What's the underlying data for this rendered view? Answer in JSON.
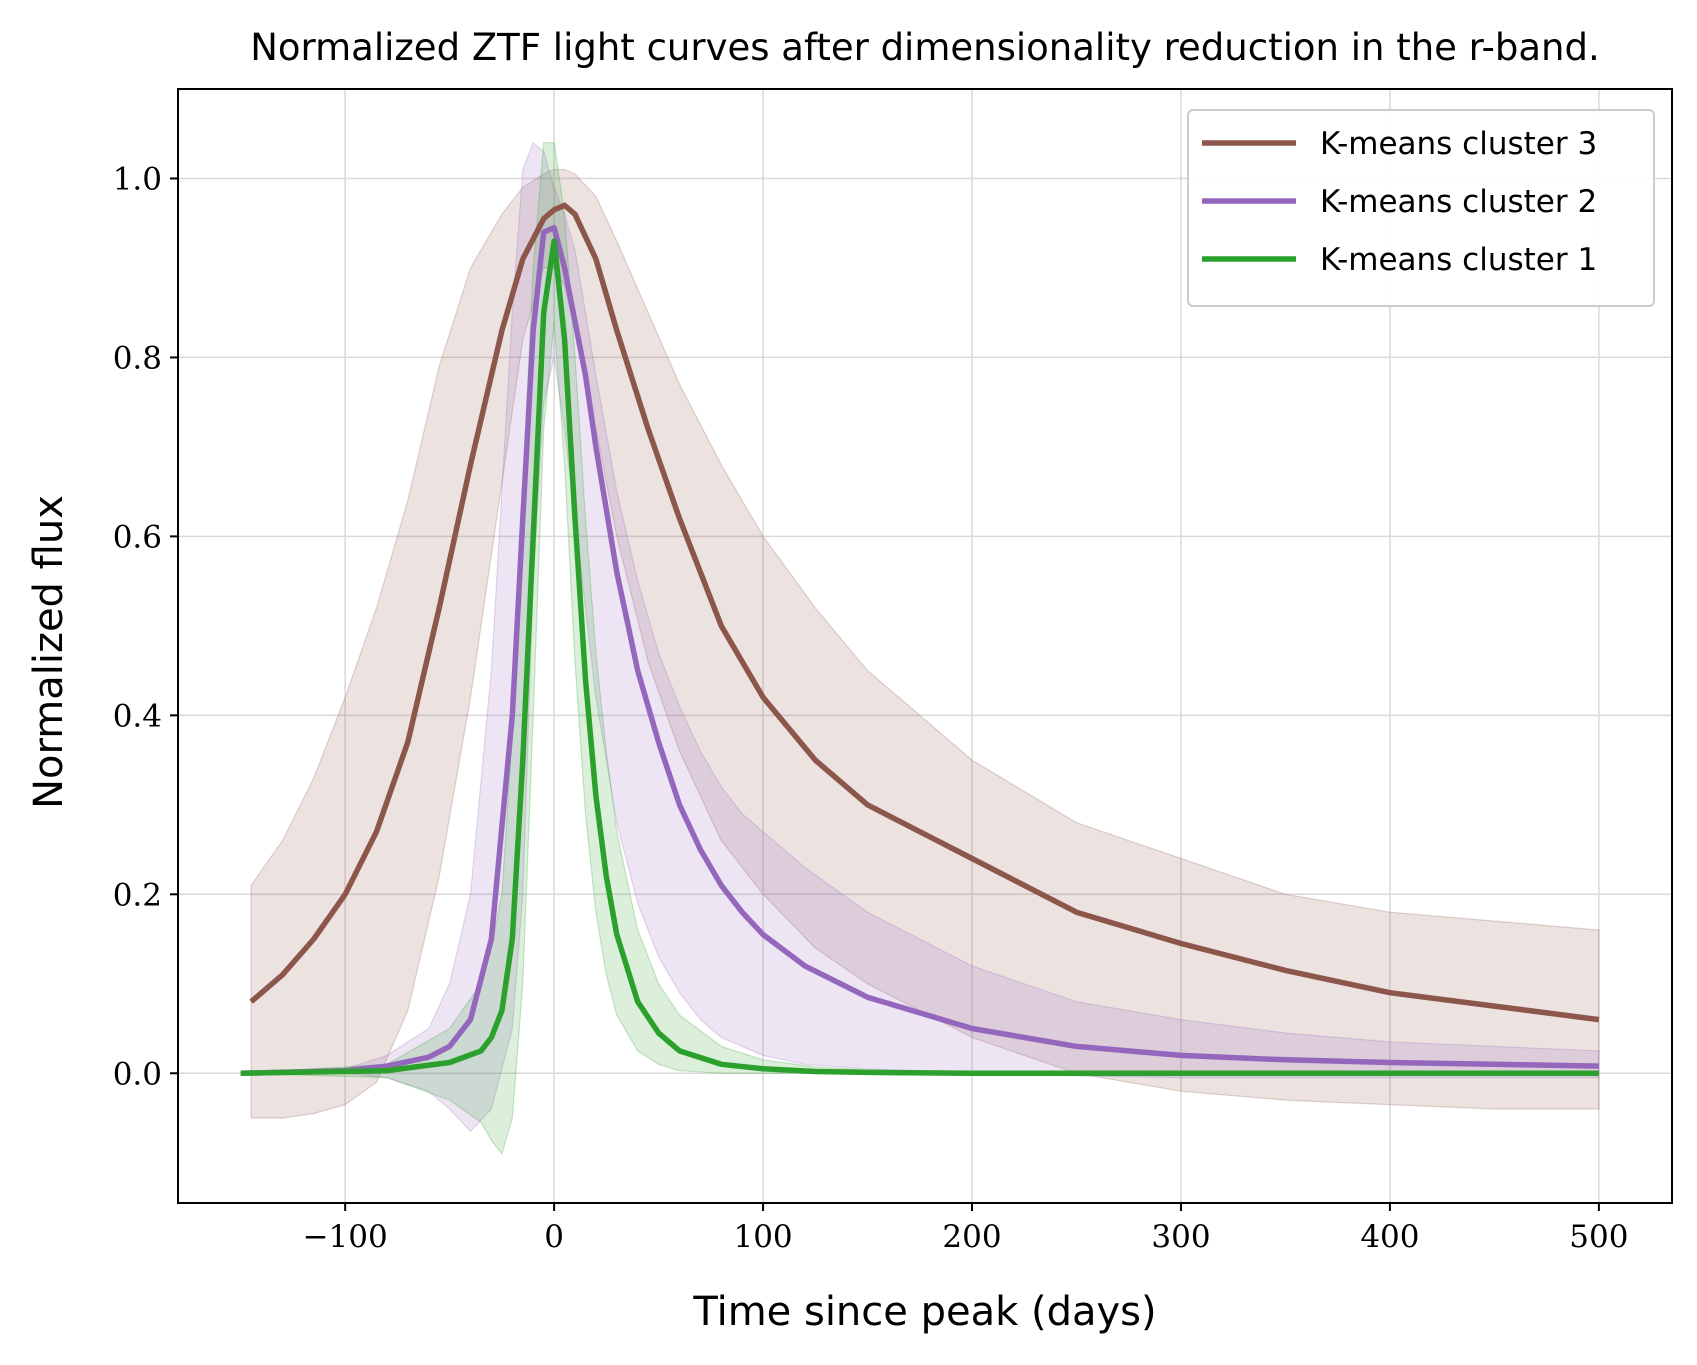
{
  "chart_data": {
    "type": "line",
    "title": "Normalized ZTF light curves after dimensionality reduction in the r-band.",
    "xlabel": "Time since peak (days)",
    "ylabel": "Normalized flux",
    "xlim": [
      -180,
      535
    ],
    "ylim": [
      -0.145,
      1.1
    ],
    "xticks": [
      -100,
      0,
      100,
      200,
      300,
      400,
      500
    ],
    "xtick_labels": [
      "−100",
      "0",
      "100",
      "200",
      "300",
      "400",
      "500"
    ],
    "yticks": [
      0.0,
      0.2,
      0.4,
      0.6,
      0.8,
      1.0
    ],
    "ytick_labels": [
      "0.0",
      "0.2",
      "0.4",
      "0.6",
      "0.8",
      "1.0"
    ],
    "grid": true,
    "legend_position": "top-right",
    "series": [
      {
        "name": "K-means cluster 3",
        "color": "#8c564b",
        "x": [
          -145,
          -130,
          -115,
          -100,
          -85,
          -70,
          -55,
          -40,
          -25,
          -15,
          -5,
          0,
          5,
          10,
          20,
          30,
          45,
          60,
          80,
          100,
          125,
          150,
          175,
          200,
          250,
          300,
          350,
          400,
          450,
          500
        ],
        "y": [
          0.08,
          0.11,
          0.15,
          0.2,
          0.27,
          0.37,
          0.52,
          0.68,
          0.83,
          0.91,
          0.955,
          0.965,
          0.97,
          0.96,
          0.91,
          0.83,
          0.72,
          0.62,
          0.5,
          0.42,
          0.35,
          0.3,
          0.27,
          0.24,
          0.18,
          0.145,
          0.115,
          0.09,
          0.075,
          0.06
        ],
        "band_lower": [
          -0.05,
          -0.05,
          -0.045,
          -0.035,
          -0.01,
          0.07,
          0.22,
          0.42,
          0.66,
          0.82,
          0.9,
          0.9,
          0.88,
          0.83,
          0.72,
          0.6,
          0.46,
          0.36,
          0.26,
          0.2,
          0.14,
          0.1,
          0.07,
          0.04,
          0.0,
          -0.02,
          -0.03,
          -0.035,
          -0.04,
          -0.04
        ],
        "band_upper": [
          0.21,
          0.26,
          0.33,
          0.42,
          0.52,
          0.64,
          0.79,
          0.9,
          0.96,
          0.99,
          1.005,
          1.01,
          1.01,
          1.005,
          0.98,
          0.93,
          0.85,
          0.77,
          0.68,
          0.6,
          0.52,
          0.45,
          0.4,
          0.35,
          0.28,
          0.24,
          0.2,
          0.18,
          0.17,
          0.16
        ]
      },
      {
        "name": "K-means cluster 2",
        "color": "#9467bd",
        "x": [
          -150,
          -100,
          -80,
          -60,
          -50,
          -40,
          -30,
          -20,
          -15,
          -10,
          -5,
          0,
          5,
          10,
          15,
          20,
          30,
          40,
          50,
          60,
          70,
          80,
          90,
          100,
          120,
          150,
          200,
          250,
          300,
          350,
          400,
          450,
          500
        ],
        "y": [
          0.0,
          0.003,
          0.008,
          0.018,
          0.03,
          0.06,
          0.15,
          0.4,
          0.62,
          0.83,
          0.94,
          0.945,
          0.9,
          0.84,
          0.78,
          0.7,
          0.56,
          0.45,
          0.37,
          0.3,
          0.25,
          0.21,
          0.18,
          0.155,
          0.12,
          0.085,
          0.05,
          0.03,
          0.02,
          0.015,
          0.012,
          0.01,
          0.008
        ],
        "band_lower": [
          0.0,
          0.0,
          -0.005,
          -0.02,
          -0.04,
          -0.065,
          -0.04,
          0.05,
          0.2,
          0.55,
          0.75,
          0.8,
          0.72,
          0.62,
          0.52,
          0.42,
          0.28,
          0.19,
          0.13,
          0.09,
          0.06,
          0.04,
          0.03,
          0.02,
          0.01,
          0.005,
          0.0,
          -0.003,
          -0.005,
          -0.005,
          -0.005,
          -0.005,
          -0.005
        ],
        "band_upper": [
          0.0,
          0.005,
          0.02,
          0.05,
          0.1,
          0.2,
          0.45,
          0.85,
          1.01,
          1.04,
          1.03,
          0.99,
          0.96,
          0.92,
          0.85,
          0.78,
          0.65,
          0.55,
          0.47,
          0.41,
          0.36,
          0.32,
          0.29,
          0.27,
          0.23,
          0.18,
          0.12,
          0.08,
          0.06,
          0.045,
          0.035,
          0.03,
          0.025
        ]
      },
      {
        "name": "K-means cluster 1",
        "color": "#2ca02c",
        "x": [
          -150,
          -80,
          -50,
          -35,
          -30,
          -25,
          -20,
          -15,
          -10,
          -5,
          0,
          5,
          10,
          15,
          20,
          25,
          30,
          40,
          50,
          60,
          80,
          100,
          125,
          150,
          200,
          300,
          400,
          500
        ],
        "y": [
          0.0,
          0.003,
          0.012,
          0.025,
          0.04,
          0.07,
          0.15,
          0.35,
          0.6,
          0.85,
          0.93,
          0.82,
          0.62,
          0.44,
          0.31,
          0.22,
          0.155,
          0.08,
          0.045,
          0.025,
          0.01,
          0.005,
          0.002,
          0.001,
          0.0,
          0.0,
          0.0,
          0.0
        ],
        "band_lower": [
          0.0,
          -0.005,
          -0.03,
          -0.055,
          -0.075,
          -0.09,
          -0.05,
          0.1,
          0.4,
          0.72,
          0.84,
          0.68,
          0.46,
          0.29,
          0.18,
          0.11,
          0.065,
          0.025,
          0.01,
          0.003,
          0.0,
          0.0,
          0.0,
          0.0,
          0.0,
          0.0,
          0.0,
          0.0
        ],
        "band_upper": [
          0.0,
          0.01,
          0.05,
          0.1,
          0.14,
          0.2,
          0.38,
          0.65,
          0.9,
          1.04,
          1.04,
          0.96,
          0.8,
          0.62,
          0.47,
          0.36,
          0.27,
          0.16,
          0.1,
          0.065,
          0.03,
          0.015,
          0.007,
          0.004,
          0.002,
          0.001,
          0.001,
          0.001
        ]
      }
    ]
  }
}
